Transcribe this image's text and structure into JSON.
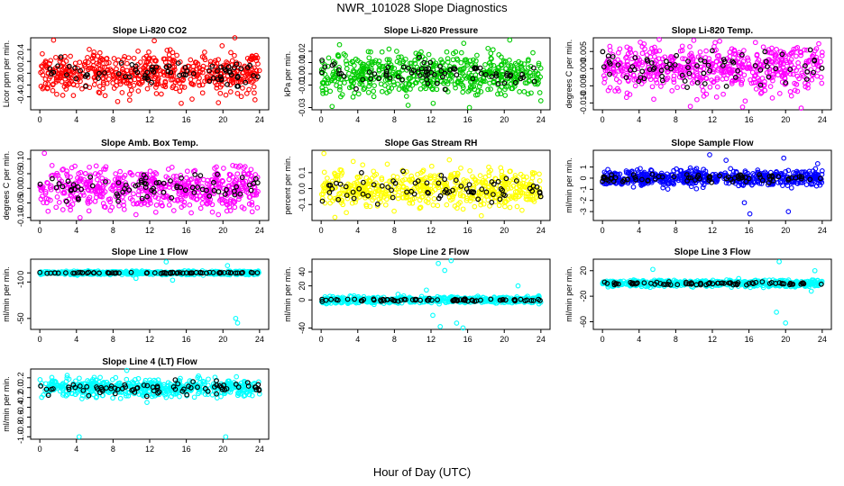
{
  "figure": {
    "title": "NWR_101028  Slope Diagnostics",
    "xlabel": "Hour of Day (UTC)",
    "colors": {
      "overlay": "#000000",
      "red": "#ff0000",
      "green": "#00cc00",
      "magenta": "#ff00ff",
      "yellow": "#ffff00",
      "blue": "#0000ff",
      "cyan": "#00ffff"
    }
  },
  "chart_data": [
    {
      "type": "scatter",
      "title": "Slope Li-820 CO2",
      "ylabel": "Licor ppm per min.",
      "color": "#ff0000",
      "ylim": [
        -0.62,
        0.6
      ],
      "yticks": [
        "-0.4",
        "-0.2",
        "0.0",
        "0.2",
        "0.4"
      ],
      "xlim": [
        -1,
        25
      ],
      "xticks": [
        "0",
        "4",
        "8",
        "12",
        "16",
        "20",
        "24"
      ],
      "spread": 0.17,
      "spread_overlay": 0.1,
      "outliers": [
        [
          1.5,
          0.56
        ],
        [
          12.5,
          0.55
        ],
        [
          21.3,
          0.6
        ],
        [
          19.5,
          -0.5
        ],
        [
          23.5,
          -0.45
        ],
        [
          8.5,
          -0.48
        ]
      ]
    },
    {
      "type": "scatter",
      "title": "Slope Li-820 Pressure",
      "ylabel": "kPa per min.",
      "color": "#00cc00",
      "ylim": [
        -0.032,
        0.032
      ],
      "yticks": [
        "-0.03",
        "-0.01",
        "0.00",
        "0.01",
        "0.02"
      ],
      "xlim": [
        -1,
        25
      ],
      "xticks": [
        "0",
        "4",
        "8",
        "12",
        "16",
        "20",
        "24"
      ],
      "spread": 0.009,
      "spread_overlay": 0.006,
      "outliers": [
        [
          20.6,
          0.03
        ],
        [
          1.2,
          -0.029
        ],
        [
          9.5,
          -0.028
        ],
        [
          16.2,
          -0.03
        ],
        [
          24,
          -0.024
        ]
      ]
    },
    {
      "type": "scatter",
      "title": "Slope Li-820 Temp.",
      "ylabel": "degrees C per min.",
      "color": "#ff00ff",
      "ylim": [
        -0.012,
        0.009
      ],
      "yticks": [
        "-0.010",
        "-0.005",
        "0.000",
        "0.005"
      ],
      "xlim": [
        -1,
        25
      ],
      "xticks": [
        "0",
        "4",
        "8",
        "12",
        "16",
        "20",
        "24"
      ],
      "spread": 0.0035,
      "spread_overlay": 0.0025,
      "outliers": [
        [
          6.2,
          0.0085
        ],
        [
          12.8,
          0.008
        ],
        [
          9.6,
          -0.011
        ],
        [
          15.3,
          -0.0112
        ],
        [
          21.7,
          -0.0115
        ]
      ]
    },
    {
      "type": "scatter",
      "title": "Slope Amb. Box Temp.",
      "ylabel": "degrees C per min.",
      "color": "#ff00ff",
      "ylim": [
        -0.11,
        0.13
      ],
      "yticks": [
        "-0.10",
        "-0.05",
        "0.00",
        "0.05",
        "0.10"
      ],
      "xlim": [
        -1,
        25
      ],
      "xticks": [
        "0",
        "4",
        "8",
        "12",
        "16",
        "20",
        "24"
      ],
      "spread": 0.035,
      "spread_overlay": 0.022,
      "outliers": [
        [
          0.5,
          0.12
        ],
        [
          4.4,
          -0.1
        ],
        [
          10.5,
          -0.09
        ],
        [
          19.5,
          -0.09
        ],
        [
          23.2,
          -0.08
        ]
      ]
    },
    {
      "type": "scatter",
      "title": "Slope Gas Stream RH",
      "ylabel": "percent per min.",
      "color": "#ffff00",
      "ylim": [
        -0.2,
        0.24
      ],
      "yticks": [
        "-0.1",
        "0.0",
        "0.1"
      ],
      "xlim": [
        -1,
        25
      ],
      "xticks": [
        "0",
        "4",
        "8",
        "12",
        "16",
        "20",
        "24"
      ],
      "spread": 0.06,
      "spread_overlay": 0.045,
      "outliers": [
        [
          0.3,
          0.22
        ],
        [
          3.5,
          0.17
        ],
        [
          14,
          0.18
        ],
        [
          1.5,
          -0.18
        ],
        [
          17.5,
          -0.17
        ]
      ]
    },
    {
      "type": "scatter",
      "title": "Slope Sample Flow",
      "ylabel": "ml/min per min.",
      "color": "#0000ff",
      "ylim": [
        -3.8,
        2.5
      ],
      "yticks": [
        "-3",
        "-2",
        "-1",
        "0",
        "1"
      ],
      "xlim": [
        -1,
        25
      ],
      "xticks": [
        "0",
        "4",
        "8",
        "12",
        "16",
        "20",
        "24"
      ],
      "spread": 0.35,
      "spread_overlay": 0.2,
      "outliers": [
        [
          11.7,
          2.1
        ],
        [
          15.5,
          -2.2
        ],
        [
          16.1,
          -3.2
        ],
        [
          20.3,
          -3.0
        ],
        [
          19.8,
          1.8
        ],
        [
          23.5,
          1.3
        ],
        [
          13.5,
          1.6
        ]
      ]
    },
    {
      "type": "scatter",
      "title": "Slope Line 1 Flow",
      "ylabel": "ml/min per min.",
      "color": "#00ffff",
      "ylim": [
        -62,
        15
      ],
      "yticks": [
        "-50",
        "-10",
        "0"
      ],
      "xlim": [
        -1,
        25
      ],
      "xticks": [
        "0",
        "4",
        "8",
        "12",
        "16",
        "20",
        "24"
      ],
      "spread": 1.0,
      "spread_overlay": 0.3,
      "outliers": [
        [
          13.8,
          12
        ],
        [
          21.4,
          -50
        ],
        [
          21.6,
          -55
        ],
        [
          20.5,
          8
        ],
        [
          10.5,
          -6
        ],
        [
          14.5,
          -8
        ]
      ]
    },
    {
      "type": "scatter",
      "title": "Slope Line 2 Flow",
      "ylabel": "ml/min per min.",
      "color": "#00ffff",
      "ylim": [
        -42,
        58
      ],
      "yticks": [
        "-40",
        "0",
        "20",
        "40"
      ],
      "xlim": [
        -1,
        25
      ],
      "xticks": [
        "0",
        "4",
        "8",
        "12",
        "16",
        "20",
        "24"
      ],
      "spread": 2.2,
      "spread_overlay": 1.0,
      "outliers": [
        [
          12.8,
          52
        ],
        [
          14.2,
          56
        ],
        [
          13.5,
          42
        ],
        [
          12.2,
          -22
        ],
        [
          13,
          -38
        ],
        [
          14.8,
          -33
        ],
        [
          15.5,
          -40
        ],
        [
          21.5,
          20
        ],
        [
          11.5,
          14
        ],
        [
          8.4,
          8
        ]
      ]
    },
    {
      "type": "scatter",
      "title": "Slope Line 3 Flow",
      "ylabel": "ml/min per min.",
      "color": "#00ffff",
      "ylim": [
        -72,
        38
      ],
      "yticks": [
        "-60",
        "-20",
        "20"
      ],
      "xlim": [
        -1,
        25
      ],
      "xticks": [
        "0",
        "4",
        "8",
        "12",
        "16",
        "20",
        "24"
      ],
      "spread": 2.5,
      "spread_overlay": 1.2,
      "outliers": [
        [
          19.3,
          34
        ],
        [
          20,
          -62
        ],
        [
          19,
          -45
        ],
        [
          5.5,
          22
        ],
        [
          23.2,
          20
        ],
        [
          22.8,
          -12
        ]
      ]
    },
    {
      "type": "scatter",
      "title": "Slope Line 4 (LT) Flow",
      "ylabel": "ml/min per min.",
      "color": "#00ffff",
      "ylim": [
        -1.05,
        0.38
      ],
      "yticks": [
        "-1.0",
        "-0.8",
        "-0.6",
        "-0.4",
        "-0.2",
        "0.0",
        "0.2"
      ],
      "xlim": [
        -1,
        25
      ],
      "xticks": [
        "0",
        "4",
        "8",
        "12",
        "16",
        "20",
        "24"
      ],
      "spread": 0.09,
      "spread_overlay": 0.07,
      "outliers": [
        [
          4.3,
          -1.0
        ],
        [
          20.3,
          -1.0
        ],
        [
          11.7,
          -0.3
        ],
        [
          13.8,
          -0.2
        ],
        [
          9.5,
          0.35
        ]
      ]
    }
  ]
}
